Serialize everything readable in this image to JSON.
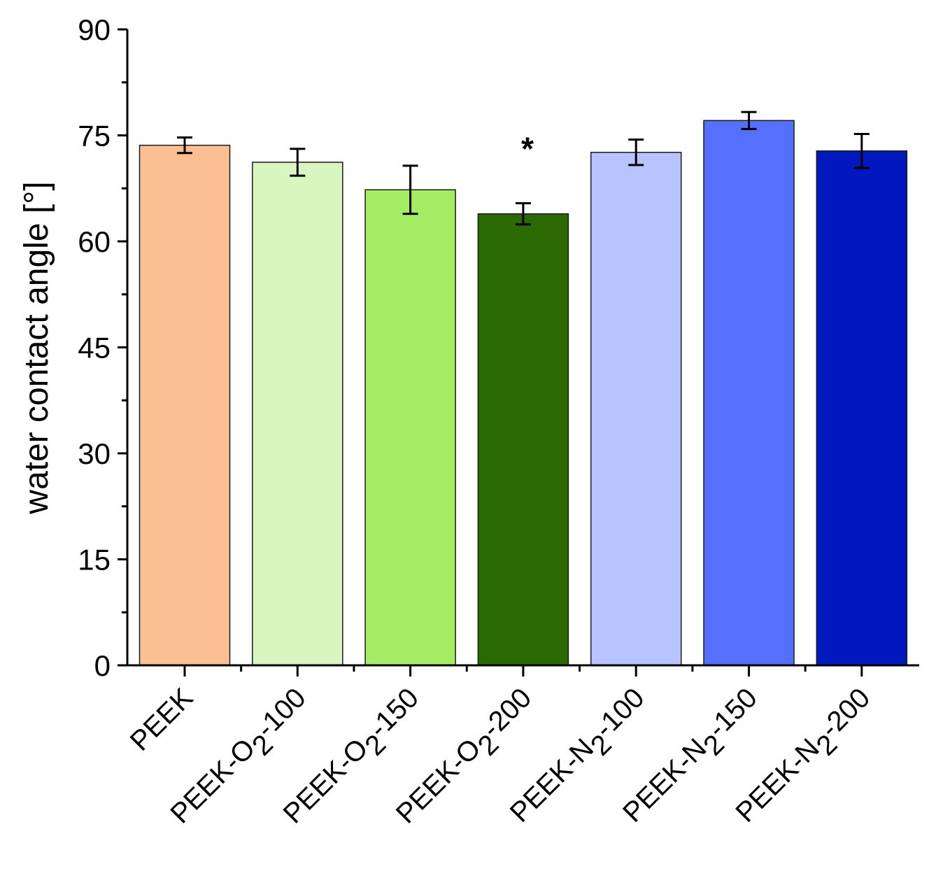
{
  "chart_data": {
    "type": "bar",
    "title": "",
    "xlabel": "",
    "ylabel": "water contact angle [°]",
    "ylim": [
      0,
      90
    ],
    "yticks": [
      0,
      15,
      30,
      45,
      60,
      75,
      90
    ],
    "categories": [
      {
        "base": "PEEK",
        "sub": "",
        "suffix": ""
      },
      {
        "base": "PEEK-O",
        "sub": "2",
        "suffix": "-100"
      },
      {
        "base": "PEEK-O",
        "sub": "2",
        "suffix": "-150"
      },
      {
        "base": "PEEK-O",
        "sub": "2",
        "suffix": "-200"
      },
      {
        "base": "PEEK-N",
        "sub": "2",
        "suffix": "-100"
      },
      {
        "base": "PEEK-N",
        "sub": "2",
        "suffix": "-150"
      },
      {
        "base": "PEEK-N",
        "sub": "2",
        "suffix": "-200"
      }
    ],
    "values": [
      73.6,
      71.2,
      67.3,
      63.9,
      72.6,
      77.1,
      72.8
    ],
    "errors": [
      1.1,
      1.9,
      3.4,
      1.5,
      1.8,
      1.2,
      2.4
    ],
    "colors": [
      "#fbbf92",
      "#d9f6c0",
      "#a3ec63",
      "#2b6a03",
      "#b8c4fd",
      "#5570fd",
      "#0218bf"
    ],
    "annotations": [
      {
        "category_index": 3,
        "text": "*",
        "y": 73.5
      }
    ],
    "grid": false,
    "legend": "none"
  }
}
